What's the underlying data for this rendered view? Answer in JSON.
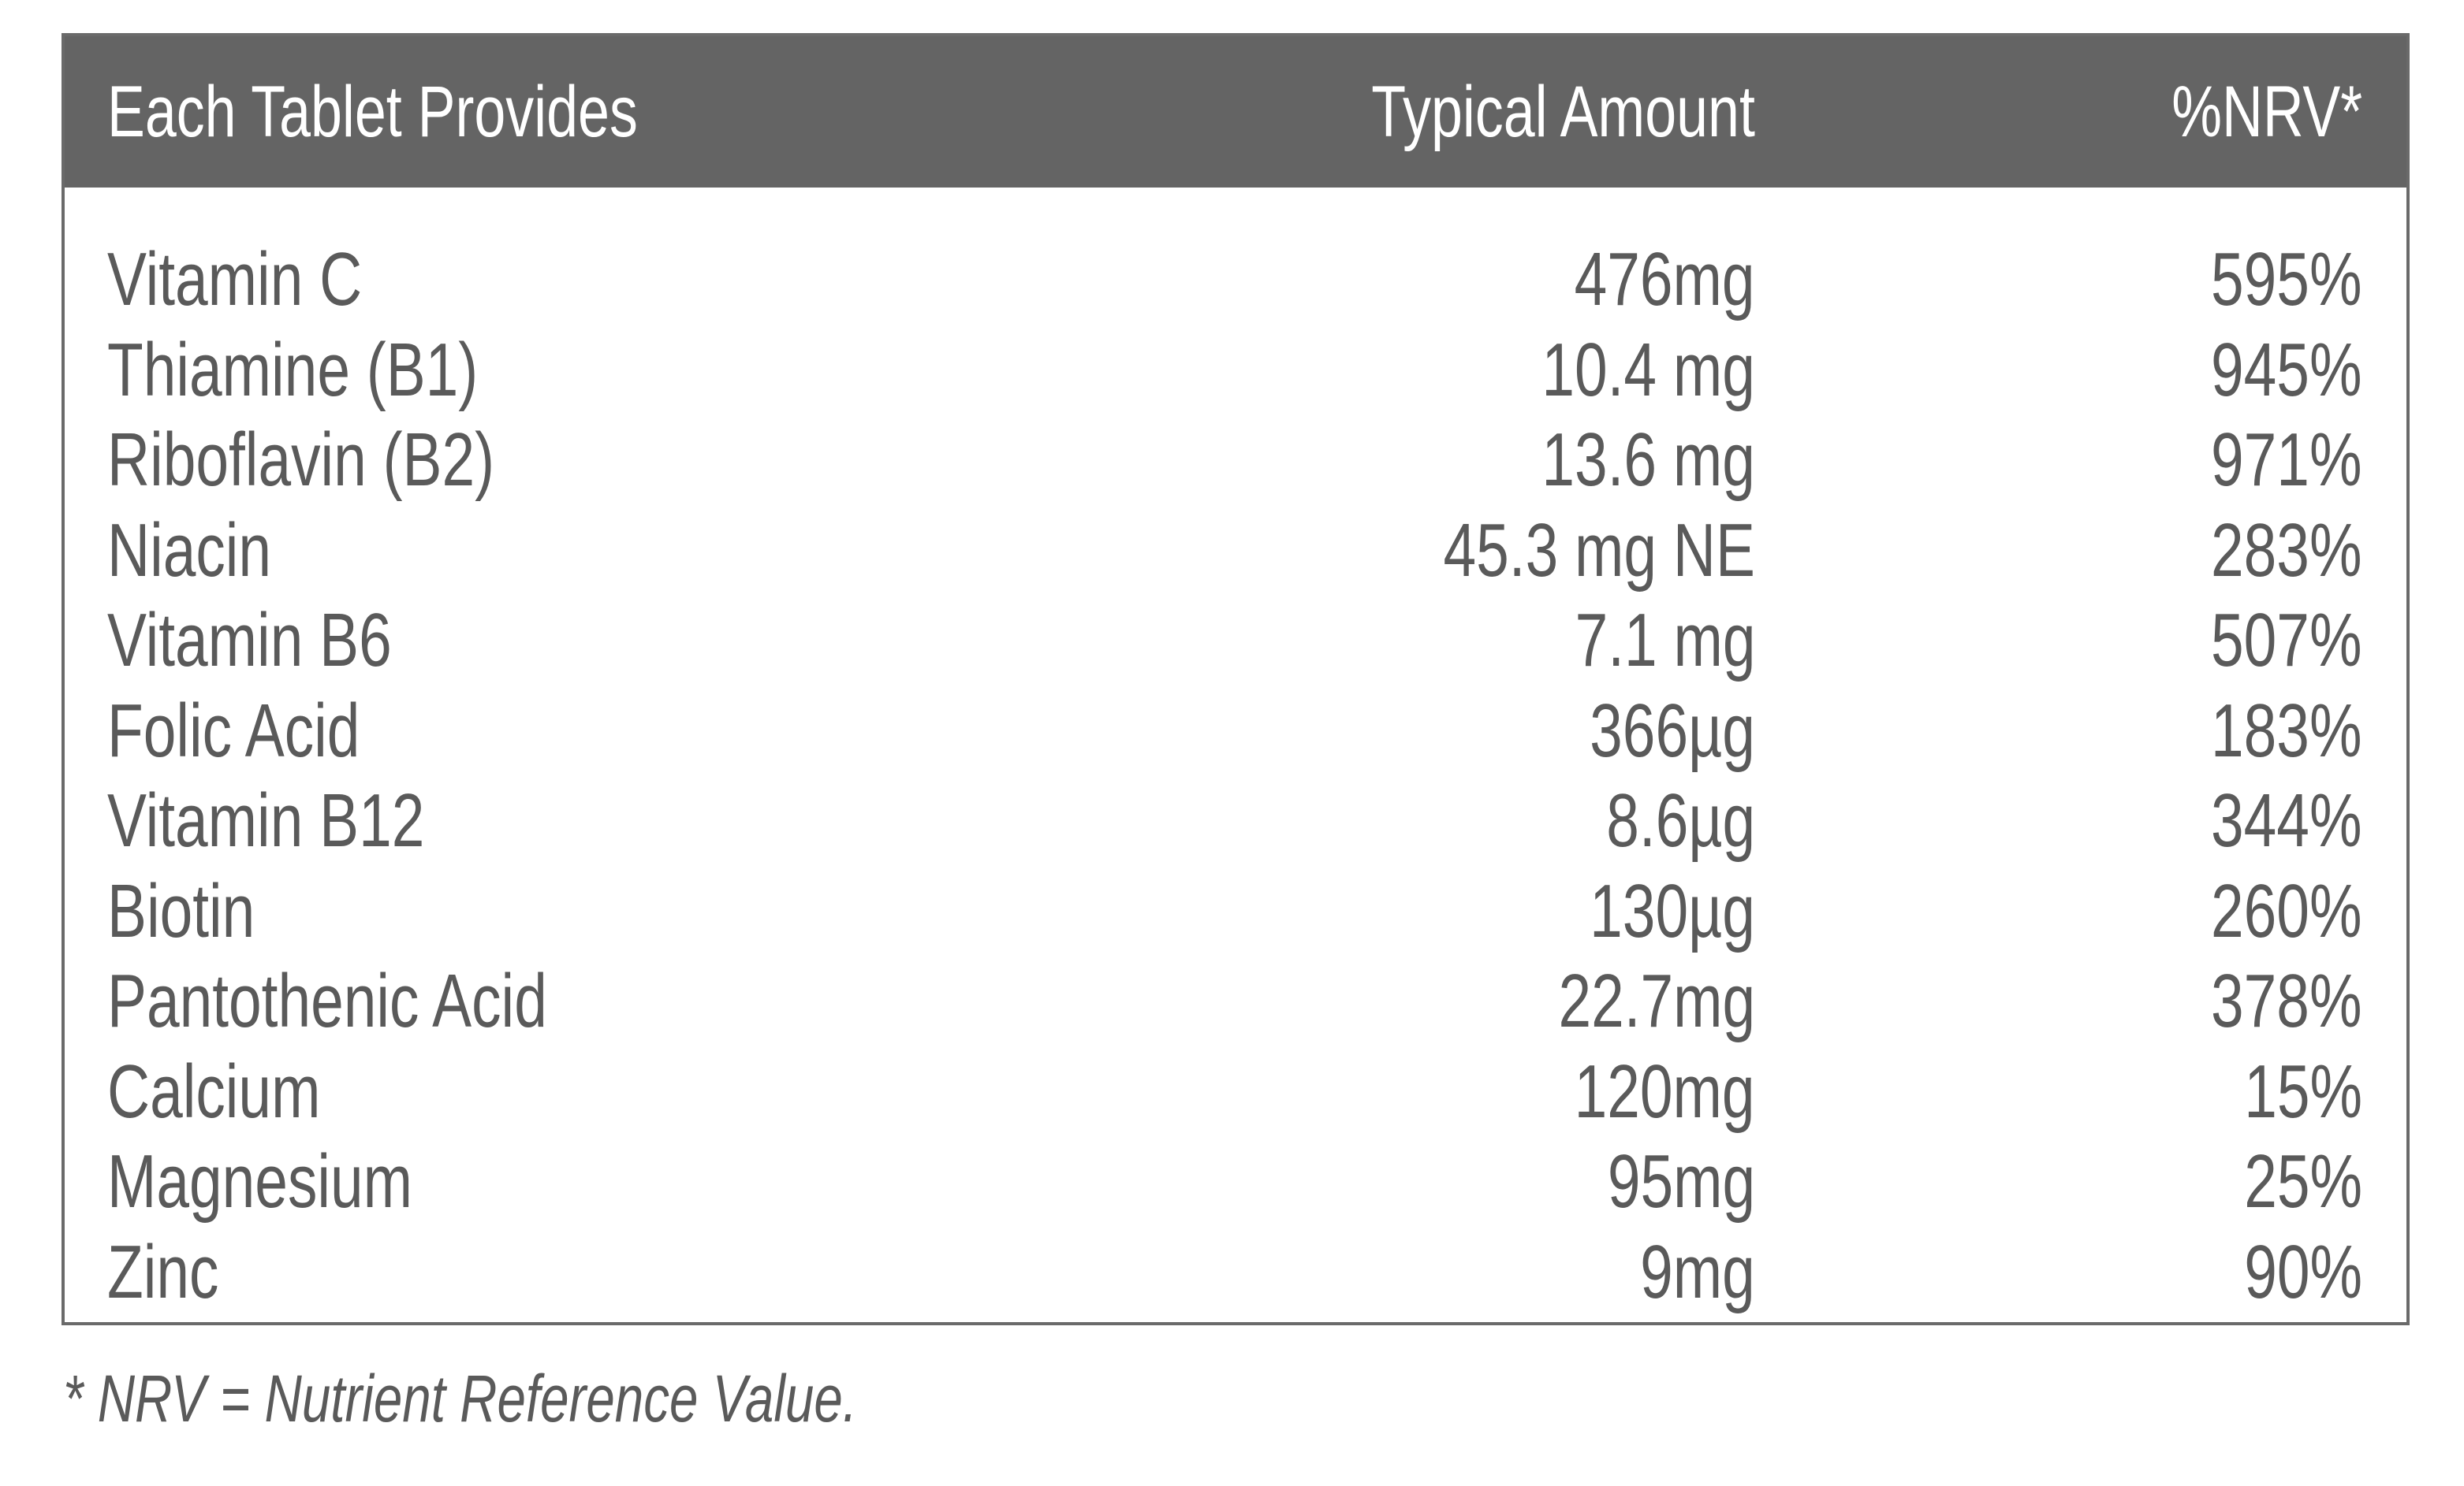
{
  "table": {
    "headers": {
      "name": "Each Tablet Provides",
      "amount": "Typical Amount",
      "nrv": "%NRV*"
    },
    "rows": [
      {
        "name": "Vitamin C",
        "amount": "476mg",
        "nrv": "595%"
      },
      {
        "name": "Thiamine (B1)",
        "amount": "10.4 mg",
        "nrv": "945%"
      },
      {
        "name": "Riboflavin (B2)",
        "amount": "13.6 mg",
        "nrv": "971%"
      },
      {
        "name": "Niacin",
        "amount": "45.3 mg NE",
        "nrv": "283%"
      },
      {
        "name": "Vitamin B6",
        "amount": "7.1 mg",
        "nrv": "507%"
      },
      {
        "name": "Folic Acid",
        "amount": "366µg",
        "nrv": "183%"
      },
      {
        "name": "Vitamin B12",
        "amount": "8.6µg",
        "nrv": "344%"
      },
      {
        "name": "Biotin",
        "amount": "130µg",
        "nrv": "260%"
      },
      {
        "name": "Pantothenic Acid",
        "amount": "22.7mg",
        "nrv": "378%"
      },
      {
        "name": "Calcium",
        "amount": "120mg",
        "nrv": "15%"
      },
      {
        "name": "Magnesium",
        "amount": "95mg",
        "nrv": "25%"
      },
      {
        "name": "Zinc",
        "amount": "9mg",
        "nrv": "90%"
      }
    ]
  },
  "footnote": "* NRV = Nutrient Reference Value.",
  "colors": {
    "header_background": "#646464",
    "header_text": "#ffffff",
    "body_text": "#5a5a5a",
    "border": "#6a6a6a"
  }
}
